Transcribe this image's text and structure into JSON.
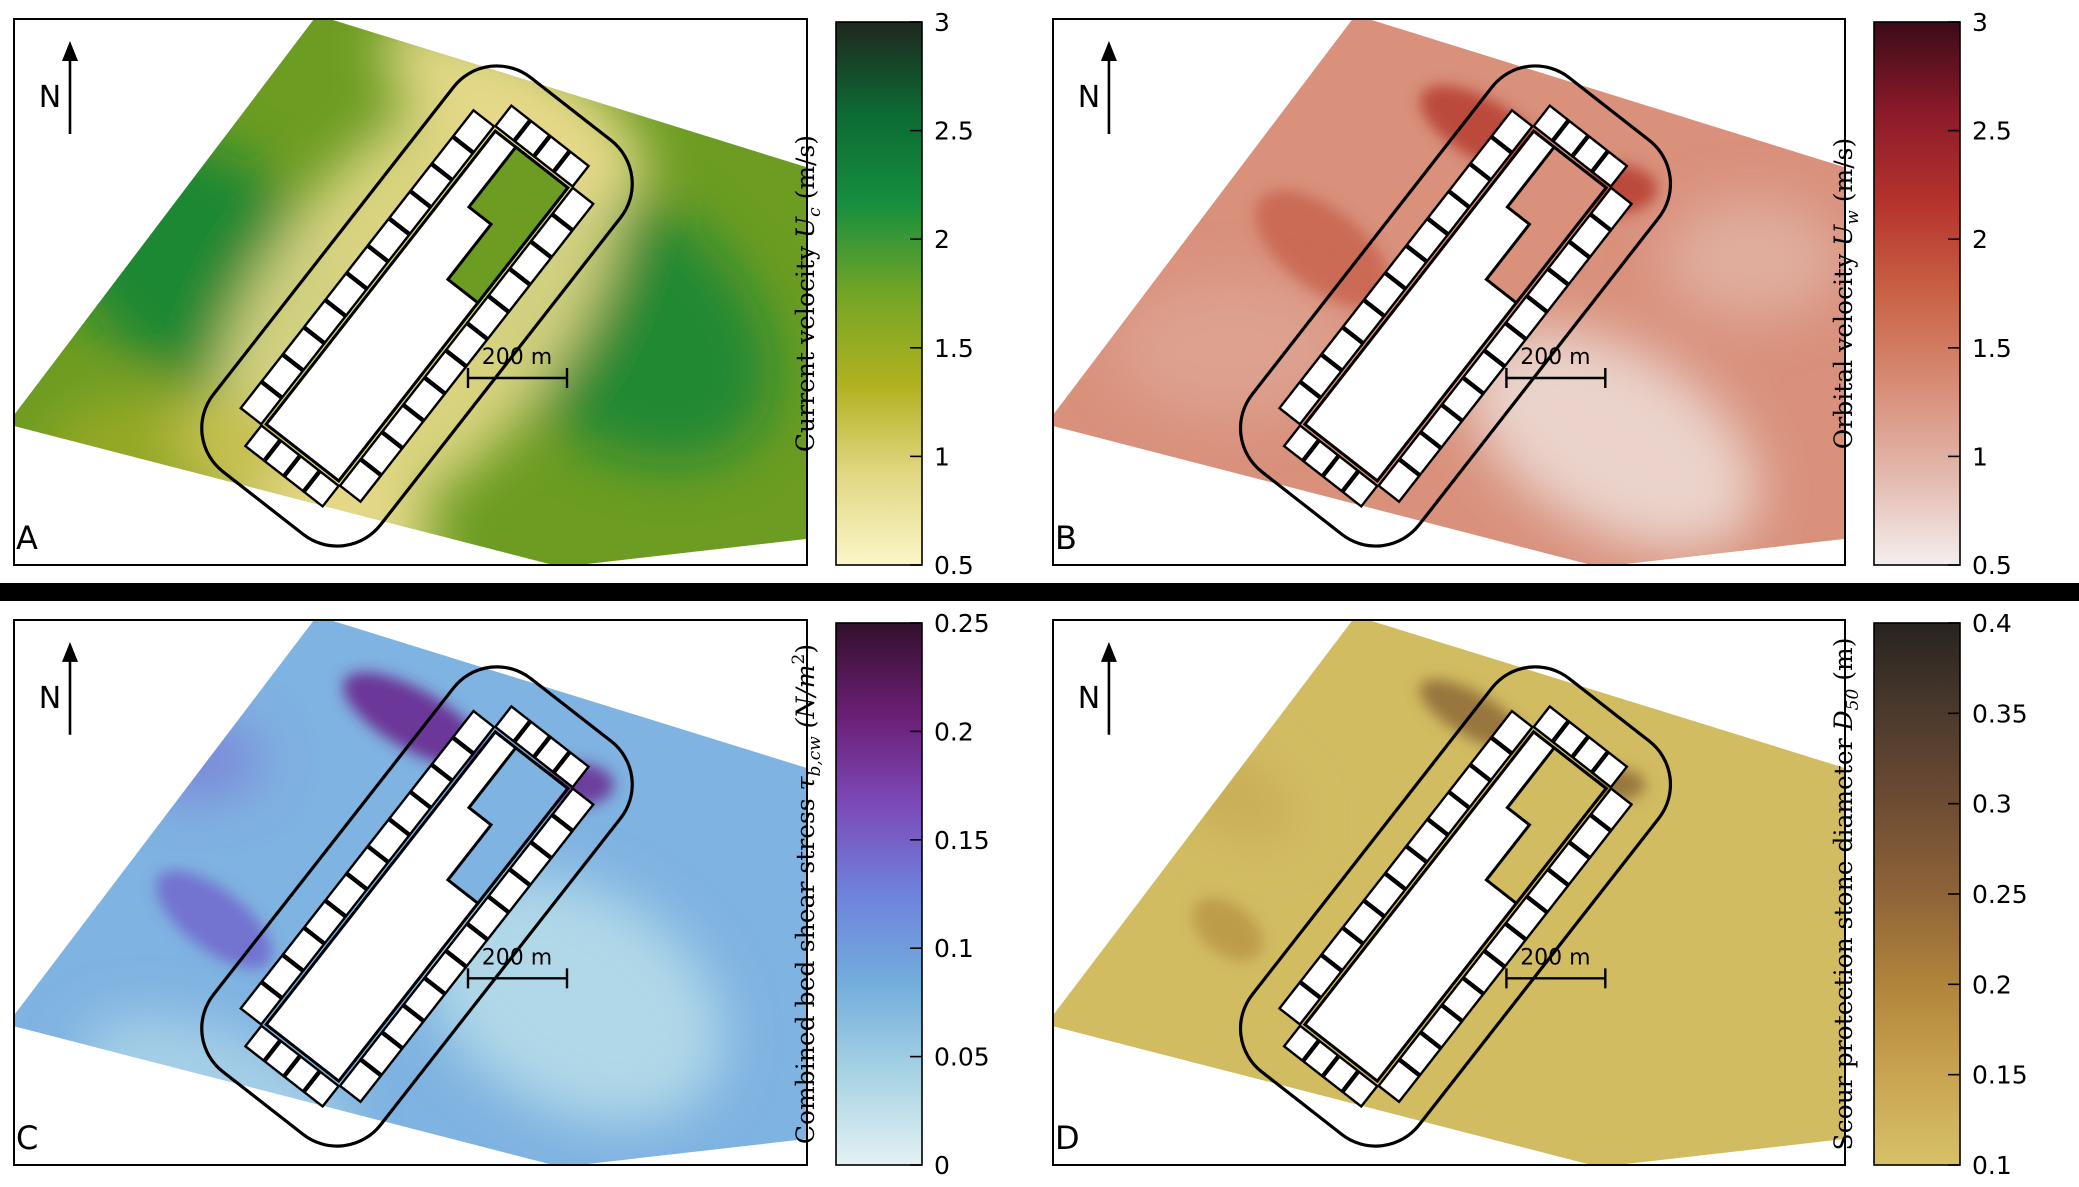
{
  "chart_data": [
    {
      "type": "heatmap",
      "panel_label": "A",
      "north_label": "N",
      "scale_bar_label": "200 m",
      "colorbar": {
        "label_text": "Current velocity ",
        "label_symbol": "U",
        "label_subscript": "c",
        "label_unit": " (m/s)",
        "min": 0.5,
        "max": 3,
        "ticks": [
          "0.5",
          "1",
          "1.5",
          "2",
          "2.5",
          "3"
        ],
        "tick_values": [
          0.5,
          1,
          1.5,
          2,
          2.5,
          3
        ],
        "colors": [
          "#fbf6c8",
          "#e2d783",
          "#b1b11f",
          "#73a526",
          "#168e3f",
          "#0c6a33",
          "#20271f"
        ]
      },
      "field_colors": {
        "base": "#6c9c22",
        "high": "#118437",
        "low": "#e6d98a"
      }
    },
    {
      "type": "heatmap",
      "panel_label": "B",
      "north_label": "N",
      "scale_bar_label": "200 m",
      "colorbar": {
        "label_text": "Orbital velocity ",
        "label_symbol": "U",
        "label_subscript": "w",
        "label_unit": " (m/s)",
        "min": 0.5,
        "max": 3,
        "ticks": [
          "0.5",
          "1",
          "1.5",
          "2",
          "2.5",
          "3"
        ],
        "tick_values": [
          0.5,
          1,
          1.5,
          2,
          2.5,
          3
        ],
        "colors": [
          "#f4eeee",
          "#e3b8ac",
          "#d78c76",
          "#c96244",
          "#b5332d",
          "#8c1a2a",
          "#3c0b18"
        ]
      },
      "field_colors": {
        "base": "#d9917c",
        "high": "#a8221f",
        "low": "#ecdad4"
      }
    },
    {
      "type": "heatmap",
      "panel_label": "C",
      "north_label": "N",
      "scale_bar_label": "200 m",
      "colorbar": {
        "label_text": "Combined bed-shear stress ",
        "label_symbol": "τ",
        "label_subscript": "b,cw",
        "label_unit": " (N/m",
        "label_superscript": "2",
        "label_close": ")",
        "min": 0,
        "max": 0.25,
        "ticks": [
          "0",
          "0.05",
          "0.1",
          "0.15",
          "0.2",
          "0.25"
        ],
        "tick_values": [
          0,
          0.05,
          0.1,
          0.15,
          0.2,
          0.25
        ],
        "colors": [
          "#e3f1f3",
          "#a8d3e4",
          "#73aedc",
          "#6e82dc",
          "#7c49b8",
          "#6a1e74",
          "#32102c"
        ]
      },
      "field_colors": {
        "base": "#7fb3e1",
        "high": "#6a2a90",
        "low": "#b6dce9"
      }
    },
    {
      "type": "heatmap",
      "panel_label": "D",
      "north_label": "N",
      "scale_bar_label": "200 m",
      "colorbar": {
        "label_text": "Scour protection stone diameter ",
        "label_symbol": "D",
        "label_subscript": "50",
        "label_unit": " (m)",
        "min": 0.1,
        "max": 0.4,
        "ticks": [
          "0.1",
          "0.15",
          "0.2",
          "0.25",
          "0.3",
          "0.35",
          "0.4"
        ],
        "tick_values": [
          0.1,
          0.15,
          0.2,
          0.25,
          0.3,
          0.35,
          0.4
        ],
        "colors": [
          "#d6c168",
          "#c9a450",
          "#b1843b",
          "#8e6438",
          "#6e4c33",
          "#4c3a2d",
          "#27231f"
        ]
      },
      "field_colors": {
        "base": "#d2bc62",
        "high": "#8a6432",
        "low": "#d6c06a"
      }
    }
  ]
}
